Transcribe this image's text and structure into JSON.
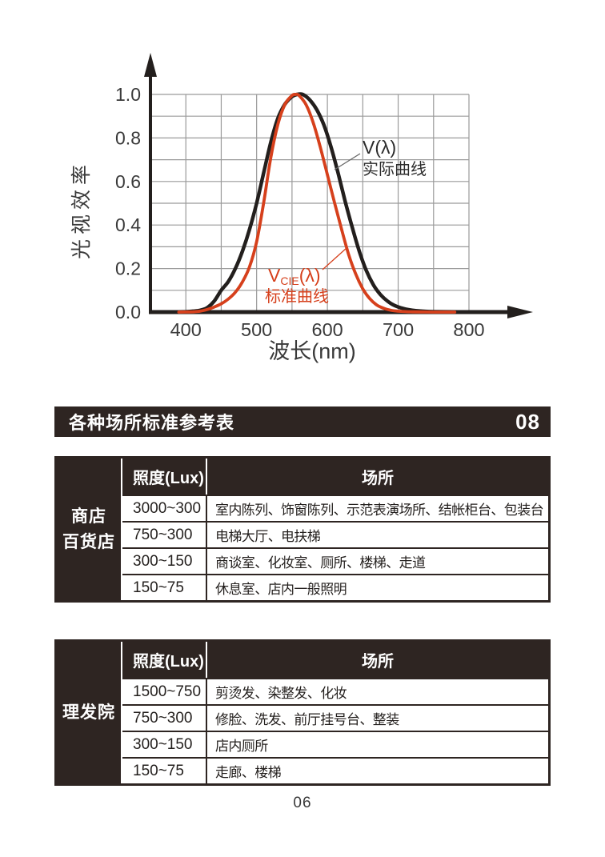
{
  "section_header": {
    "title": "各种场所标准参考表",
    "badge": "08"
  },
  "tables": [
    {
      "category_lines": [
        "商店",
        "百货店"
      ],
      "columns": {
        "lux": "照度(Lux)",
        "place": "场所"
      },
      "rows": [
        {
          "lux": "3000~300",
          "place": "室内陈列、饰窗陈列、示范表演场所、结帐柜台、包装台"
        },
        {
          "lux": "750~300",
          "place": "电梯大厅、电扶梯"
        },
        {
          "lux": "300~150",
          "place": "商谈室、化妆室、厕所、楼梯、走道"
        },
        {
          "lux": "150~75",
          "place": "休息室、店内一般照明"
        }
      ]
    },
    {
      "category_lines": [
        "理发院"
      ],
      "columns": {
        "lux": "照度(Lux)",
        "place": "场所"
      },
      "rows": [
        {
          "lux": "1500~750",
          "place": "剪烫发、染整发、化妆"
        },
        {
          "lux": "750~300",
          "place": "修脸、洗发、前厅挂号台、整装"
        },
        {
          "lux": "300~150",
          "place": "店内厕所"
        },
        {
          "lux": "150~75",
          "place": "走廊、楼梯"
        }
      ]
    }
  ],
  "page": {
    "number": "06"
  },
  "chart_data": {
    "type": "line",
    "title": "",
    "xlabel": "波长(nm)",
    "ylabel": "光视效率",
    "xlim": [
      350,
      800
    ],
    "ylim": [
      0,
      1.0
    ],
    "x_ticks": [
      "400",
      "500",
      "600",
      "700",
      "800"
    ],
    "x_tick_values": [
      400,
      500,
      600,
      700,
      800
    ],
    "y_ticks": [
      "0.0",
      "0.2",
      "0.4",
      "0.6",
      "0.8",
      "1.0"
    ],
    "y_tick_values": [
      0,
      0.2,
      0.4,
      0.6,
      0.8,
      1.0
    ],
    "grid": {
      "on": true,
      "x_step": 50,
      "y_step": 0.1,
      "color": "#9a9a9a"
    },
    "axis_color": "#231f1d",
    "legend_position": "annotations-on-plot",
    "series": [
      {
        "name": "V(λ) 实际曲线",
        "color": "#231f1d",
        "x": [
          390,
          400,
          410,
          420,
          430,
          440,
          450,
          460,
          470,
          480,
          490,
          500,
          510,
          520,
          530,
          540,
          550,
          557,
          565,
          575,
          585,
          595,
          605,
          615,
          625,
          635,
          645,
          655,
          665,
          675,
          685,
          695,
          710,
          730,
          750,
          785
        ],
        "y": [
          0.001,
          0.002,
          0.004,
          0.008,
          0.02,
          0.05,
          0.1,
          0.14,
          0.2,
          0.28,
          0.38,
          0.5,
          0.64,
          0.78,
          0.89,
          0.955,
          0.99,
          1.0,
          1.0,
          0.975,
          0.93,
          0.86,
          0.76,
          0.64,
          0.51,
          0.39,
          0.28,
          0.19,
          0.125,
          0.08,
          0.05,
          0.03,
          0.014,
          0.005,
          0.002,
          0.001
        ]
      },
      {
        "name": "VCIE(λ) 标准曲线",
        "color": "#d6401c",
        "x": [
          390,
          400,
          410,
          420,
          430,
          440,
          450,
          460,
          470,
          480,
          490,
          500,
          510,
          520,
          530,
          540,
          550,
          555,
          560,
          570,
          580,
          590,
          600,
          610,
          620,
          630,
          640,
          650,
          660,
          670,
          680,
          690,
          700,
          710,
          720,
          740,
          760,
          780
        ],
        "y": [
          0.0001,
          0.0004,
          0.0012,
          0.004,
          0.0116,
          0.023,
          0.038,
          0.06,
          0.091,
          0.139,
          0.208,
          0.323,
          0.503,
          0.71,
          0.862,
          0.954,
          0.995,
          1.0,
          0.995,
          0.952,
          0.87,
          0.757,
          0.631,
          0.503,
          0.381,
          0.265,
          0.175,
          0.107,
          0.061,
          0.032,
          0.017,
          0.0082,
          0.0041,
          0.0021,
          0.001,
          0.00025,
          6e-05,
          1e-05
        ]
      }
    ],
    "annotations": [
      {
        "id": "actual",
        "line1": "V(λ)",
        "line2": "实际曲线",
        "color": "#2b2b2b"
      },
      {
        "id": "standard",
        "v": "V",
        "sub_cie": "CIE",
        "lambda": "(λ)",
        "line2": "标准曲线",
        "color": "#d6401c"
      }
    ]
  }
}
